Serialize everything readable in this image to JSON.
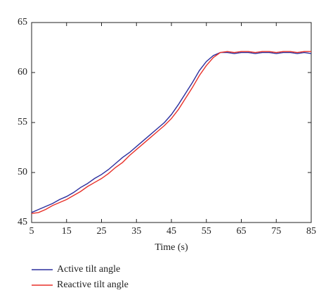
{
  "chart_data": {
    "type": "line",
    "x_label": "Time (s)",
    "x": [
      5,
      7,
      9,
      11,
      13,
      15,
      17,
      19,
      21,
      23,
      25,
      27,
      29,
      31,
      33,
      35,
      37,
      39,
      41,
      43,
      45,
      47,
      49,
      51,
      53,
      55,
      57,
      59,
      61,
      63,
      65,
      67,
      69,
      71,
      73,
      75,
      77,
      79,
      81,
      83,
      85
    ],
    "series": [
      {
        "name": "Active tilt angle",
        "color": "#2b2f9e",
        "values": [
          46.0,
          46.3,
          46.6,
          46.9,
          47.3,
          47.6,
          48.0,
          48.5,
          48.9,
          49.4,
          49.8,
          50.3,
          50.9,
          51.5,
          52.0,
          52.6,
          53.2,
          53.8,
          54.4,
          55.0,
          55.8,
          56.8,
          57.9,
          59.0,
          60.2,
          61.1,
          61.7,
          62.0,
          62.0,
          61.9,
          62.0,
          62.0,
          61.9,
          62.0,
          62.0,
          61.9,
          62.0,
          62.0,
          61.9,
          62.0,
          61.9
        ]
      },
      {
        "name": "Reactive tilt angle",
        "color": "#e8312a",
        "values": [
          45.9,
          46.0,
          46.3,
          46.7,
          47.0,
          47.3,
          47.7,
          48.1,
          48.6,
          49.0,
          49.4,
          49.9,
          50.5,
          51.0,
          51.7,
          52.3,
          52.9,
          53.5,
          54.1,
          54.7,
          55.4,
          56.3,
          57.4,
          58.5,
          59.7,
          60.7,
          61.5,
          62.0,
          62.1,
          62.0,
          62.1,
          62.1,
          62.0,
          62.1,
          62.1,
          62.0,
          62.1,
          62.1,
          62.0,
          62.1,
          62.1
        ]
      }
    ],
    "xlim": [
      5,
      85
    ],
    "xticks": [
      5,
      15,
      25,
      35,
      45,
      55,
      65,
      75,
      85
    ],
    "ylim": [
      45,
      65
    ],
    "yticks": [
      45,
      50,
      55,
      60,
      65
    ],
    "grid": false
  }
}
